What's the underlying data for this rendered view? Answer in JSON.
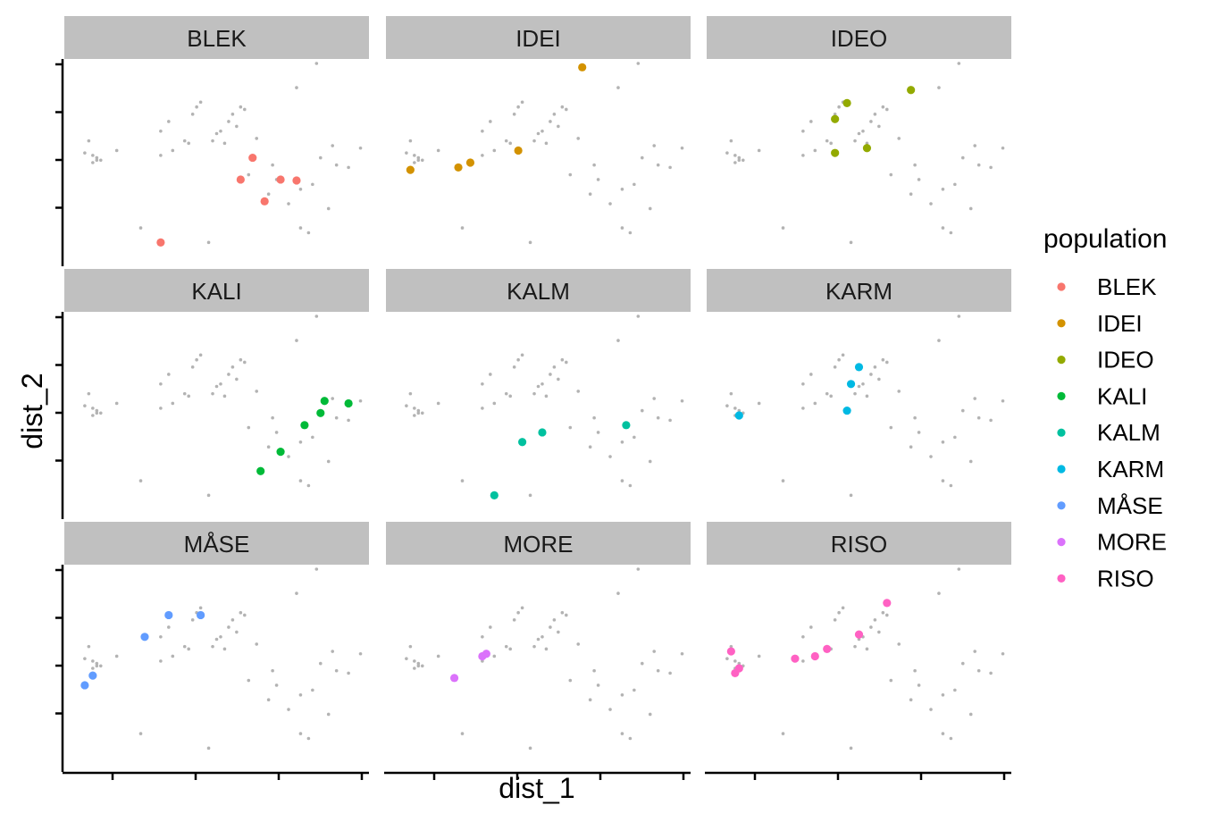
{
  "chart_data": {
    "type": "scatter",
    "facet_by": "population",
    "facets": [
      "BLEK",
      "IDEI",
      "IDEO",
      "KALI",
      "KALM",
      "KARM",
      "MÅSE",
      "MORE",
      "RISO"
    ],
    "layout": "3x3 grid, shared axes",
    "xlabel": "dist_1",
    "ylabel": "dist_2",
    "x_tick_labels_shown": false,
    "y_tick_labels_shown": false,
    "grid": false,
    "xlim": [
      -0.3,
      3.4
    ],
    "ylim": [
      -0.3,
      3.8
    ],
    "background_point_color": "#b3b3b3",
    "legend": {
      "title": "population",
      "position": "right"
    },
    "colors": {
      "BLEK": "#F8766D",
      "IDEI": "#D39200",
      "IDEO": "#93AA00",
      "KALI": "#00BA38",
      "KALM": "#00C19F",
      "KARM": "#00B9E3",
      "MÅSE": "#619CFF",
      "MORE": "#DB72FB",
      "RISO": "#FF61C3"
    },
    "series": [
      {
        "name": "BLEK",
        "points": [
          [
            0.85,
            0.1
          ],
          [
            1.85,
            1.4
          ],
          [
            2.0,
            1.85
          ],
          [
            2.15,
            0.95
          ],
          [
            2.35,
            1.4
          ],
          [
            2.55,
            1.38
          ]
        ]
      },
      {
        "name": "IDEI",
        "points": [
          [
            -0.05,
            1.6
          ],
          [
            0.55,
            1.65
          ],
          [
            0.7,
            1.75
          ],
          [
            1.3,
            2.0
          ],
          [
            2.1,
            3.72
          ]
        ]
      },
      {
        "name": "IDEO",
        "points": [
          [
            1.25,
            1.95
          ],
          [
            1.25,
            2.65
          ],
          [
            1.4,
            2.98
          ],
          [
            1.65,
            2.05
          ],
          [
            2.2,
            3.25
          ]
        ]
      },
      {
        "name": "KALI",
        "points": [
          [
            2.1,
            0.6
          ],
          [
            2.35,
            1.0
          ],
          [
            2.65,
            1.55
          ],
          [
            2.85,
            1.8
          ],
          [
            2.9,
            2.05
          ],
          [
            3.2,
            2.0
          ]
        ]
      },
      {
        "name": "KALM",
        "points": [
          [
            1.0,
            0.1
          ],
          [
            1.35,
            1.2
          ],
          [
            1.6,
            1.4
          ],
          [
            2.65,
            1.55
          ]
        ]
      },
      {
        "name": "KARM",
        "points": [
          [
            0.05,
            1.75
          ],
          [
            1.4,
            1.85
          ],
          [
            1.45,
            2.4
          ],
          [
            1.55,
            2.75
          ]
        ]
      },
      {
        "name": "MÅSE",
        "points": [
          [
            -0.1,
            1.4
          ],
          [
            0.0,
            1.6
          ],
          [
            0.65,
            2.4
          ],
          [
            0.95,
            2.85
          ],
          [
            1.35,
            2.85
          ]
        ]
      },
      {
        "name": "MORE",
        "points": [
          [
            0.5,
            1.55
          ],
          [
            0.85,
            2.0
          ],
          [
            0.9,
            2.05
          ]
        ]
      },
      {
        "name": "RISO",
        "points": [
          [
            -0.05,
            2.1
          ],
          [
            0.0,
            1.65
          ],
          [
            0.05,
            1.75
          ],
          [
            0.75,
            1.95
          ],
          [
            1.0,
            2.0
          ],
          [
            1.15,
            2.15
          ],
          [
            1.55,
            2.45
          ],
          [
            1.9,
            3.1
          ]
        ]
      }
    ],
    "background_points": [
      [
        -0.1,
        1.95
      ],
      [
        -0.05,
        2.2
      ],
      [
        0.0,
        1.75
      ],
      [
        0.0,
        1.9
      ],
      [
        0.05,
        1.8
      ],
      [
        0.05,
        1.85
      ],
      [
        0.1,
        1.8
      ],
      [
        0.85,
        1.9
      ],
      [
        0.85,
        2.4
      ],
      [
        0.95,
        2.6
      ],
      [
        1.0,
        2.0
      ],
      [
        1.15,
        2.2
      ],
      [
        1.2,
        2.15
      ],
      [
        1.25,
        2.75
      ],
      [
        1.3,
        2.9
      ],
      [
        1.5,
        2.2
      ],
      [
        1.55,
        2.35
      ],
      [
        1.6,
        2.4
      ],
      [
        1.65,
        2.15
      ],
      [
        1.7,
        2.6
      ],
      [
        1.75,
        2.75
      ],
      [
        1.8,
        2.5
      ],
      [
        1.85,
        2.9
      ],
      [
        1.9,
        2.85
      ],
      [
        2.05,
        2.25
      ],
      [
        2.25,
        1.7
      ],
      [
        2.3,
        1.4
      ],
      [
        2.45,
        0.9
      ],
      [
        2.6,
        0.4
      ],
      [
        2.7,
        0.3
      ],
      [
        2.95,
        0.8
      ],
      [
        2.8,
        3.8
      ],
      [
        2.55,
        3.3
      ],
      [
        2.85,
        1.85
      ],
      [
        3.05,
        1.7
      ],
      [
        3.2,
        1.65
      ],
      [
        3.35,
        2.05
      ],
      [
        3.0,
        2.1
      ],
      [
        1.35,
        3.0
      ],
      [
        1.45,
        0.1
      ],
      [
        0.6,
        0.4
      ],
      [
        2.6,
        1.2
      ],
      [
        2.75,
        1.3
      ],
      [
        2.2,
        1.1
      ],
      [
        1.95,
        1.5
      ],
      [
        0.3,
        2.0
      ]
    ]
  }
}
